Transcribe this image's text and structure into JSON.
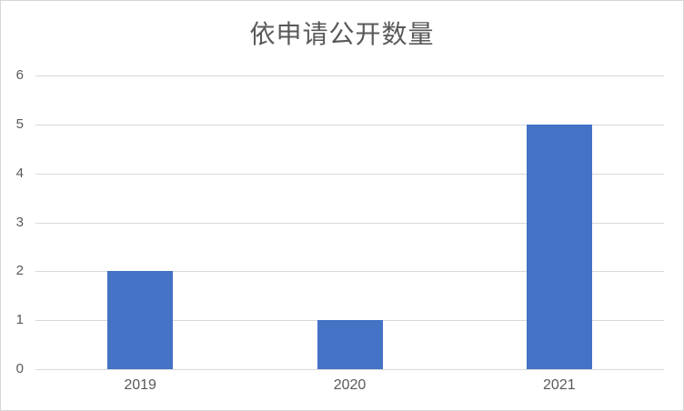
{
  "chart_data": {
    "type": "bar",
    "title": "依申请公开数量",
    "categories": [
      "2019",
      "2020",
      "2021"
    ],
    "values": [
      2,
      1,
      5
    ],
    "y_ticks": [
      0,
      1,
      2,
      3,
      4,
      5,
      6
    ],
    "ylim": [
      0,
      6
    ],
    "xlabel": "",
    "ylabel": "",
    "grid": true,
    "legend": false,
    "bar_color": "#4472C4",
    "gridline_color": "#D9D9D9",
    "text_color": "#595959",
    "background_color": "#FFFFFF",
    "border_color": "#D6D6D6"
  }
}
